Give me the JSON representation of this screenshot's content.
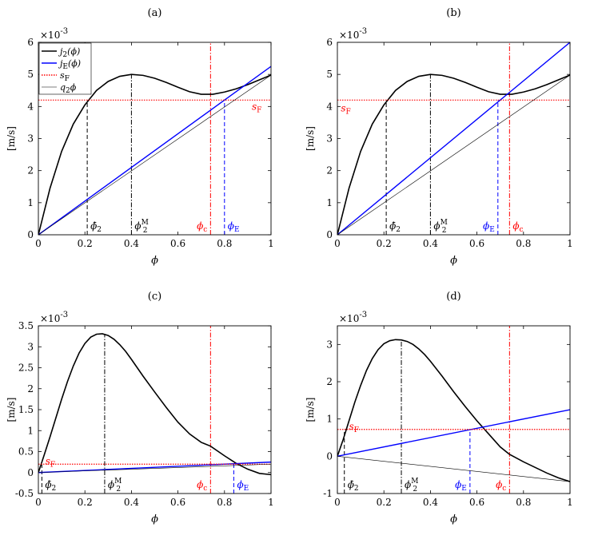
{
  "chart_data": [
    {
      "panel": "(a)",
      "type": "line",
      "xlabel": "ϕ",
      "ylabel": "[m/s]",
      "exponent": "×10",
      "exponent_power": "-3",
      "xlim": [
        0,
        1
      ],
      "ylim": [
        0,
        6
      ],
      "xticks": [
        "0",
        "0.2",
        "0.4",
        "0.6",
        "0.8",
        "1"
      ],
      "yticks": [
        "0",
        "1",
        "2",
        "3",
        "4",
        "5",
        "6"
      ],
      "legend": {
        "position": "top-left",
        "entries": [
          {
            "main": "j",
            "sub": "2",
            "tail": "(ϕ)",
            "color": "#000000",
            "style": "solid"
          },
          {
            "main": "j",
            "sub": "E",
            "tail": "(ϕ)",
            "color": "#0000ff",
            "style": "solid"
          },
          {
            "main": "s",
            "sub": "F",
            "tail": "",
            "color": "#ff0000",
            "style": "dotted"
          },
          {
            "main": "q",
            "sub": "2",
            "tail": "ϕ",
            "color": "#000000",
            "style": "thin"
          }
        ]
      },
      "series": [
        {
          "kind": "j2",
          "x": [
            0,
            0.05,
            0.1,
            0.15,
            0.2,
            0.25,
            0.3,
            0.35,
            0.4,
            0.45,
            0.5,
            0.55,
            0.6,
            0.65,
            0.7,
            0.75,
            0.8,
            0.85,
            0.9,
            0.95,
            1.0
          ],
          "y": [
            0,
            1.45,
            2.6,
            3.45,
            4.05,
            4.5,
            4.78,
            4.94,
            5.0,
            4.97,
            4.88,
            4.75,
            4.6,
            4.46,
            4.38,
            4.38,
            4.45,
            4.55,
            4.68,
            4.83,
            4.98
          ]
        },
        {
          "kind": "jE",
          "x": [
            0,
            1
          ],
          "y": [
            0,
            5.25
          ]
        },
        {
          "kind": "sF",
          "x": [
            0,
            1
          ],
          "y": [
            4.2,
            4.2
          ]
        },
        {
          "kind": "q2",
          "x": [
            0,
            1
          ],
          "y": [
            0,
            4.98
          ]
        }
      ],
      "markers": [
        {
          "x": 0.21,
          "ymax": 4.2,
          "color": "#000000",
          "dash": "dashed",
          "main": "ϕ̄",
          "sub": "2",
          "sup": "",
          "side": "right"
        },
        {
          "x": 0.4,
          "ymax": 5.0,
          "color": "#000000",
          "dash": "dashdot",
          "main": "ϕ",
          "sub": "2",
          "sup": "M",
          "side": "right"
        },
        {
          "x": 0.74,
          "ymax": 6,
          "color": "#ff0000",
          "dash": "dashdot",
          "main": "ϕ",
          "sub": "c",
          "sup": "",
          "side": "left"
        },
        {
          "x": 0.8,
          "ymax": 4.2,
          "color": "#0000ff",
          "dash": "dashed",
          "main": "ϕ",
          "sub": "E",
          "sup": "",
          "side": "right"
        }
      ],
      "sF_label": {
        "main": "s",
        "sub": "F",
        "x": 0.96,
        "y": 4.0,
        "anchor": "end"
      }
    },
    {
      "panel": "(b)",
      "type": "line",
      "xlabel": "ϕ",
      "ylabel": "[m/s]",
      "exponent": "×10",
      "exponent_power": "-3",
      "xlim": [
        0,
        1
      ],
      "ylim": [
        0,
        6
      ],
      "xticks": [
        "0",
        "0.2",
        "0.4",
        "0.6",
        "0.8",
        "1"
      ],
      "yticks": [
        "0",
        "1",
        "2",
        "3",
        "4",
        "5",
        "6"
      ],
      "series": [
        {
          "kind": "j2",
          "x": [
            0,
            0.05,
            0.1,
            0.15,
            0.2,
            0.25,
            0.3,
            0.35,
            0.4,
            0.45,
            0.5,
            0.55,
            0.6,
            0.65,
            0.7,
            0.75,
            0.8,
            0.85,
            0.9,
            0.95,
            1.0
          ],
          "y": [
            0,
            1.45,
            2.6,
            3.45,
            4.05,
            4.5,
            4.78,
            4.94,
            5.0,
            4.97,
            4.88,
            4.75,
            4.6,
            4.46,
            4.38,
            4.38,
            4.45,
            4.55,
            4.68,
            4.83,
            4.98
          ]
        },
        {
          "kind": "jE",
          "x": [
            0,
            1
          ],
          "y": [
            0,
            6.0
          ]
        },
        {
          "kind": "sF",
          "x": [
            0,
            1
          ],
          "y": [
            4.2,
            4.2
          ]
        },
        {
          "kind": "q2",
          "x": [
            0,
            1
          ],
          "y": [
            0,
            4.98
          ]
        }
      ],
      "markers": [
        {
          "x": 0.21,
          "ymax": 4.2,
          "color": "#000000",
          "dash": "dashed",
          "main": "ϕ̄",
          "sub": "2",
          "sup": "",
          "side": "right"
        },
        {
          "x": 0.4,
          "ymax": 5.0,
          "color": "#000000",
          "dash": "dashdot",
          "main": "ϕ",
          "sub": "2",
          "sup": "M",
          "side": "right"
        },
        {
          "x": 0.69,
          "ymax": 4.2,
          "color": "#0000ff",
          "dash": "dashed",
          "main": "ϕ",
          "sub": "E",
          "sup": "",
          "side": "left"
        },
        {
          "x": 0.74,
          "ymax": 6,
          "color": "#ff0000",
          "dash": "dashdot",
          "main": "ϕ",
          "sub": "c",
          "sup": "",
          "side": "right"
        }
      ],
      "sF_label": {
        "main": "s",
        "sub": "F",
        "x": 0.015,
        "y": 3.95,
        "anchor": "start"
      }
    },
    {
      "panel": "(c)",
      "type": "line",
      "xlabel": "ϕ",
      "ylabel": "[m/s]",
      "exponent": "×10",
      "exponent_power": "-3",
      "xlim": [
        0,
        1
      ],
      "ylim": [
        -0.5,
        3.5
      ],
      "xticks": [
        "0",
        "0.2",
        "0.4",
        "0.6",
        "0.8",
        "1"
      ],
      "yticks": [
        "-0.5",
        "0",
        "0.5",
        "1",
        "1.5",
        "2",
        "2.5",
        "3",
        "3.5"
      ],
      "series": [
        {
          "kind": "j2",
          "x": [
            0,
            0.025,
            0.05,
            0.075,
            0.1,
            0.125,
            0.15,
            0.175,
            0.2,
            0.225,
            0.25,
            0.275,
            0.3,
            0.325,
            0.35,
            0.375,
            0.4,
            0.45,
            0.5,
            0.55,
            0.6,
            0.65,
            0.7,
            0.74,
            0.8,
            0.85,
            0.9,
            0.95,
            1.0
          ],
          "y": [
            0,
            0.42,
            0.85,
            1.3,
            1.75,
            2.17,
            2.54,
            2.85,
            3.08,
            3.23,
            3.3,
            3.31,
            3.27,
            3.18,
            3.05,
            2.89,
            2.7,
            2.3,
            1.92,
            1.55,
            1.2,
            0.92,
            0.72,
            0.63,
            0.4,
            0.22,
            0.08,
            -0.02,
            -0.05
          ]
        },
        {
          "kind": "jE",
          "x": [
            0,
            1
          ],
          "y": [
            0,
            0.25
          ]
        },
        {
          "kind": "sF",
          "x": [
            0,
            1
          ],
          "y": [
            0.2,
            0.2
          ]
        },
        {
          "kind": "q2",
          "x": [
            0,
            1
          ],
          "y": [
            0,
            0.2
          ]
        }
      ],
      "markers": [
        {
          "x": 0.015,
          "ymax": 0.2,
          "color": "#000000",
          "dash": "dashed",
          "main": "ϕ̄",
          "sub": "2",
          "sup": "",
          "side": "right"
        },
        {
          "x": 0.285,
          "ymax": 3.31,
          "color": "#000000",
          "dash": "dashdot",
          "main": "ϕ",
          "sub": "2",
          "sup": "M",
          "side": "right"
        },
        {
          "x": 0.74,
          "ymax": 3.5,
          "color": "#ff0000",
          "dash": "dashdot",
          "main": "ϕ",
          "sub": "c",
          "sup": "",
          "side": "left"
        },
        {
          "x": 0.84,
          "ymax": 0.2,
          "color": "#0000ff",
          "dash": "dashed",
          "main": "ϕ",
          "sub": "E",
          "sup": "",
          "side": "right"
        }
      ],
      "sF_label": {
        "main": "s",
        "sub": "F",
        "x": 0.03,
        "y": 0.27,
        "anchor": "start"
      }
    },
    {
      "panel": "(d)",
      "type": "line",
      "xlabel": "ϕ",
      "ylabel": "[m/s]",
      "exponent": "×10",
      "exponent_power": "-3",
      "xlim": [
        0,
        1
      ],
      "ylim": [
        -1,
        3.5
      ],
      "xticks": [
        "0",
        "0.2",
        "0.4",
        "0.6",
        "0.8",
        "1"
      ],
      "yticks": [
        "-1",
        "0",
        "1",
        "2",
        "3"
      ],
      "series": [
        {
          "kind": "j2",
          "x": [
            0,
            0.025,
            0.05,
            0.075,
            0.1,
            0.125,
            0.15,
            0.175,
            0.2,
            0.225,
            0.25,
            0.275,
            0.3,
            0.325,
            0.35,
            0.375,
            0.4,
            0.45,
            0.5,
            0.55,
            0.6,
            0.65,
            0.7,
            0.74,
            0.8,
            0.85,
            0.9,
            0.95,
            1.0
          ],
          "y": [
            0,
            0.45,
            0.95,
            1.45,
            1.9,
            2.3,
            2.62,
            2.86,
            3.02,
            3.1,
            3.13,
            3.12,
            3.08,
            3.0,
            2.88,
            2.73,
            2.55,
            2.15,
            1.73,
            1.33,
            0.95,
            0.6,
            0.25,
            0.05,
            -0.15,
            -0.3,
            -0.45,
            -0.58,
            -0.68
          ]
        },
        {
          "kind": "jE",
          "x": [
            0,
            1
          ],
          "y": [
            0,
            1.25
          ]
        },
        {
          "kind": "sF",
          "x": [
            0,
            1
          ],
          "y": [
            0.72,
            0.72
          ]
        },
        {
          "kind": "q2",
          "x": [
            0,
            1
          ],
          "y": [
            0,
            -0.68
          ]
        }
      ],
      "markers": [
        {
          "x": 0.03,
          "ymax": 0.72,
          "color": "#000000",
          "dash": "dashed",
          "main": "ϕ̄",
          "sub": "2",
          "sup": "",
          "side": "right"
        },
        {
          "x": 0.275,
          "ymax": 3.13,
          "color": "#000000",
          "dash": "dashdot",
          "main": "ϕ",
          "sub": "2",
          "sup": "M",
          "side": "right"
        },
        {
          "x": 0.57,
          "ymax": 0.72,
          "color": "#0000ff",
          "dash": "dashed",
          "main": "ϕ",
          "sub": "E",
          "sup": "",
          "side": "left"
        },
        {
          "x": 0.74,
          "ymax": 3.5,
          "color": "#ff0000",
          "dash": "dashdot",
          "main": "ϕ",
          "sub": "c",
          "sup": "",
          "side": "left"
        }
      ],
      "sF_label": {
        "main": "s",
        "sub": "F",
        "x": 0.05,
        "y": 0.8,
        "anchor": "start"
      }
    }
  ]
}
